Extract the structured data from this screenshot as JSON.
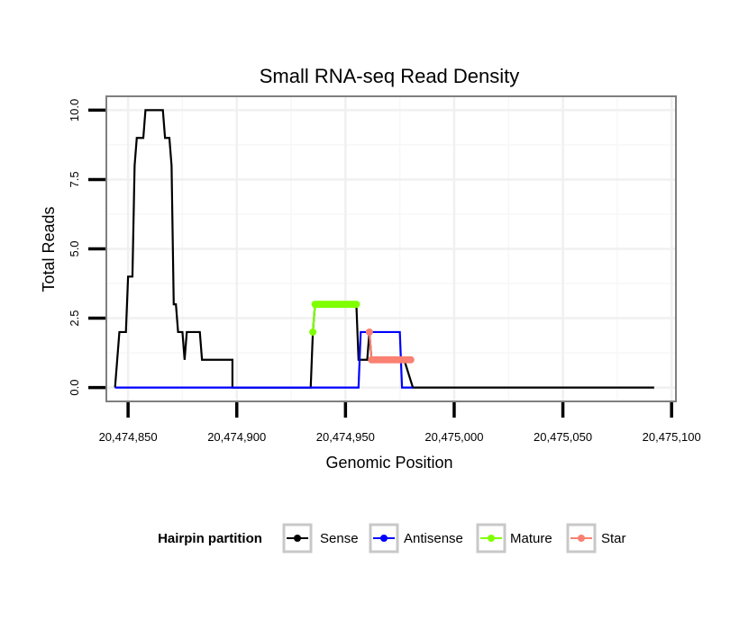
{
  "chart_data": {
    "type": "line",
    "title": "Small RNA-seq Read Density",
    "xlabel": "Genomic Position",
    "ylabel": "Total Reads",
    "xlim": [
      20474840,
      20475102
    ],
    "ylim": [
      -0.5,
      10.5
    ],
    "x_ticks": [
      20474850,
      20474900,
      20474950,
      20475000,
      20475050,
      20475100
    ],
    "x_tick_labels": [
      "20,474,850",
      "20,474,900",
      "20,474,950",
      "20,475,000",
      "20,475,050",
      "20,475,100"
    ],
    "y_ticks": [
      0,
      2.5,
      5,
      7.5,
      10
    ],
    "y_tick_labels": [
      "0.0",
      "2.5",
      "5.0",
      "7.5",
      "10.0"
    ],
    "grid": true,
    "legend": {
      "title": "Hairpin partition",
      "position": "bottom",
      "entries": [
        "Sense",
        "Antisense",
        "Mature",
        "Star"
      ]
    },
    "series": [
      {
        "name": "Sense",
        "color": "#000000",
        "style": "line",
        "points": [
          [
            20474844,
            0
          ],
          [
            20474846,
            2
          ],
          [
            20474849,
            2
          ],
          [
            20474850,
            4
          ],
          [
            20474852,
            4
          ],
          [
            20474853,
            8
          ],
          [
            20474854,
            9
          ],
          [
            20474857,
            9
          ],
          [
            20474858,
            10
          ],
          [
            20474866,
            10
          ],
          [
            20474867,
            9
          ],
          [
            20474869,
            9
          ],
          [
            20474870,
            8
          ],
          [
            20474871,
            3
          ],
          [
            20474872,
            3
          ],
          [
            20474873,
            2
          ],
          [
            20474875,
            2
          ],
          [
            20474876,
            1
          ],
          [
            20474877,
            2
          ],
          [
            20474883,
            2
          ],
          [
            20474884,
            1
          ],
          [
            20474893,
            1
          ],
          [
            20474898,
            1
          ],
          [
            20474898,
            0
          ],
          [
            20474934,
            0
          ],
          [
            20474935,
            2
          ],
          [
            20474936,
            3
          ],
          [
            20474955,
            3
          ],
          [
            20474956,
            1
          ],
          [
            20474960,
            1
          ],
          [
            20474961,
            2
          ],
          [
            20474962,
            1
          ],
          [
            20474977,
            1
          ],
          [
            20474981,
            0
          ],
          [
            20475092,
            0
          ]
        ]
      },
      {
        "name": "Antisense",
        "color": "#0000ff",
        "style": "line",
        "points": [
          [
            20474844,
            0
          ],
          [
            20474956,
            0
          ],
          [
            20474957,
            2
          ],
          [
            20474975,
            2
          ],
          [
            20474976,
            0
          ],
          [
            20474981,
            0
          ]
        ]
      },
      {
        "name": "Mature",
        "color": "#7fff00",
        "style": "line+points",
        "points": [
          [
            20474935,
            2
          ],
          [
            20474936,
            3
          ],
          [
            20474937,
            3
          ],
          [
            20474938,
            3
          ],
          [
            20474939,
            3
          ],
          [
            20474940,
            3
          ],
          [
            20474941,
            3
          ],
          [
            20474942,
            3
          ],
          [
            20474943,
            3
          ],
          [
            20474944,
            3
          ],
          [
            20474945,
            3
          ],
          [
            20474946,
            3
          ],
          [
            20474947,
            3
          ],
          [
            20474948,
            3
          ],
          [
            20474949,
            3
          ],
          [
            20474950,
            3
          ],
          [
            20474951,
            3
          ],
          [
            20474952,
            3
          ],
          [
            20474953,
            3
          ],
          [
            20474954,
            3
          ],
          [
            20474955,
            3
          ]
        ]
      },
      {
        "name": "Star",
        "color": "#fa8072",
        "style": "line+points",
        "points": [
          [
            20474961,
            2
          ],
          [
            20474962,
            1
          ],
          [
            20474963,
            1
          ],
          [
            20474964,
            1
          ],
          [
            20474965,
            1
          ],
          [
            20474966,
            1
          ],
          [
            20474967,
            1
          ],
          [
            20474968,
            1
          ],
          [
            20474969,
            1
          ],
          [
            20474970,
            1
          ],
          [
            20474971,
            1
          ],
          [
            20474972,
            1
          ],
          [
            20474973,
            1
          ],
          [
            20474974,
            1
          ],
          [
            20474975,
            1
          ],
          [
            20474976,
            1
          ],
          [
            20474977,
            1
          ],
          [
            20474978,
            1
          ],
          [
            20474979,
            1
          ],
          [
            20474980,
            1
          ]
        ]
      }
    ]
  }
}
